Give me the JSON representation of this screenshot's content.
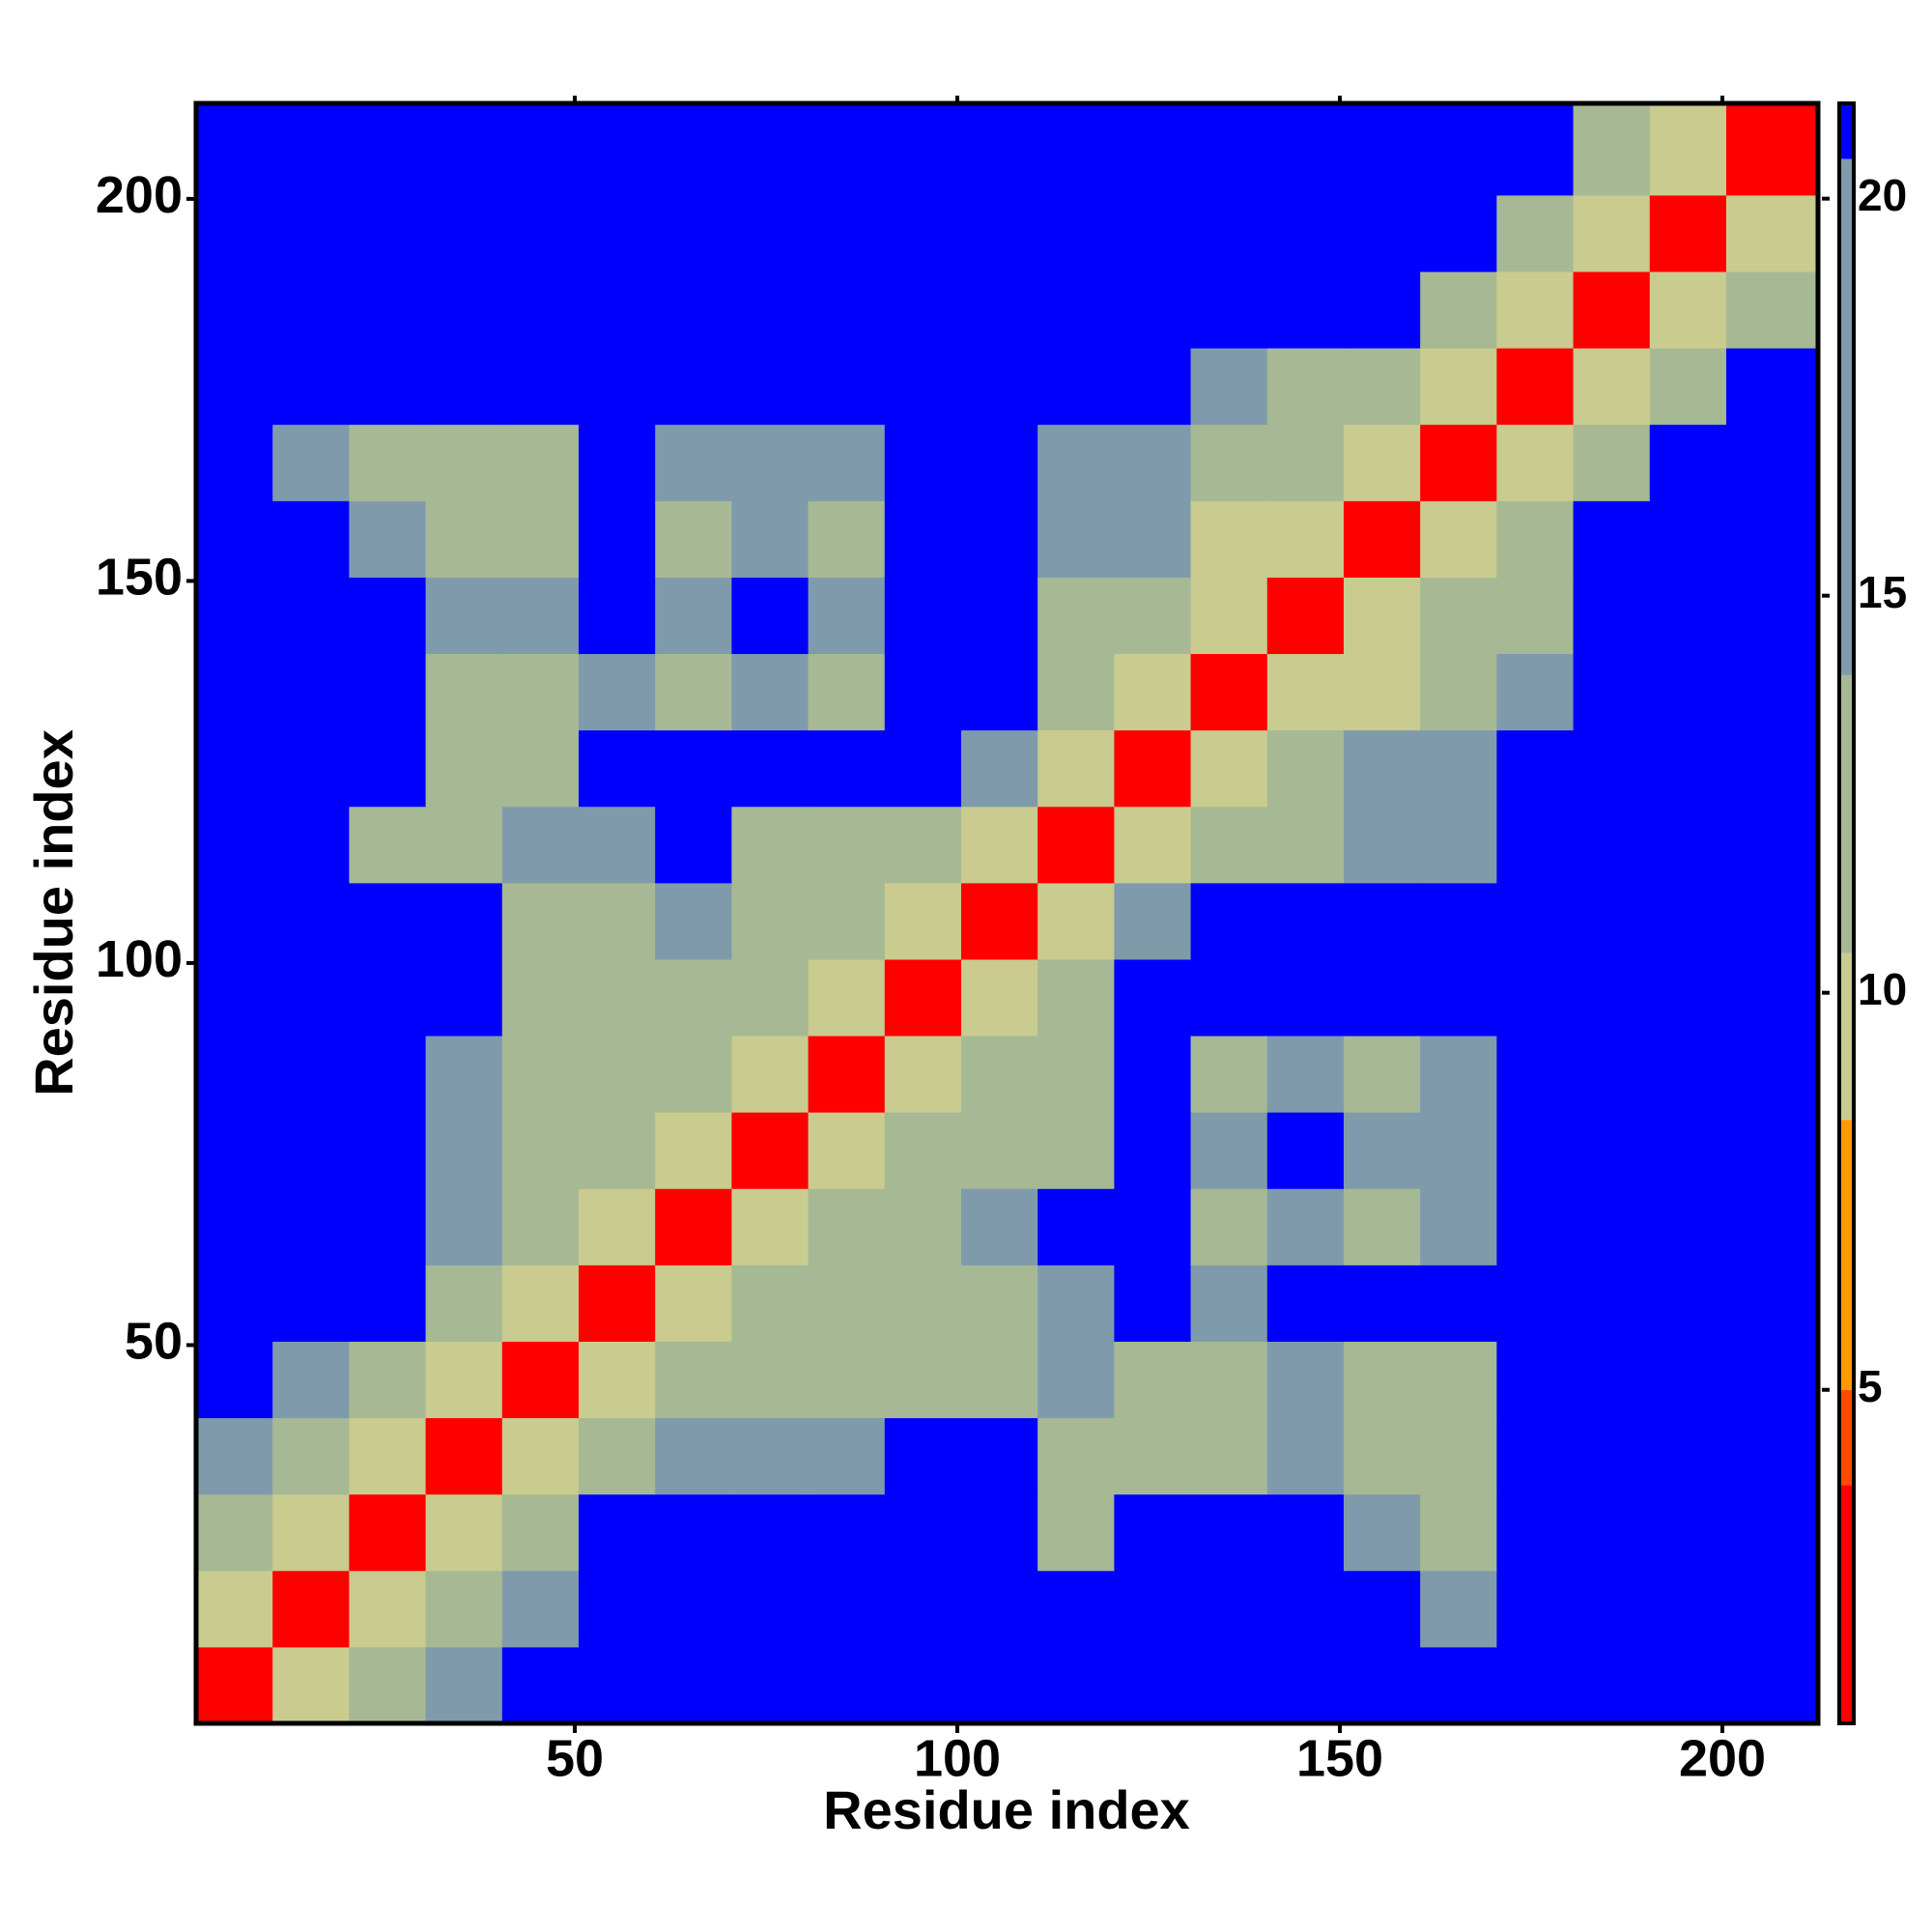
{
  "chart_data": {
    "type": "heatmap",
    "x_label": "Residue index",
    "y_label": "Residue index",
    "x_bins": [
      0.5,
      10.5,
      20.5,
      30.5,
      40.5,
      50.5,
      60.5,
      70.5,
      80.5,
      90.5,
      100.5,
      110.5,
      120.5,
      130.5,
      140.5,
      150.5,
      160.5,
      170.5,
      180.5,
      190.5,
      200.5,
      212.5
    ],
    "y_bins": [
      0.5,
      10.5,
      20.5,
      30.5,
      40.5,
      50.5,
      60.5,
      70.5,
      80.5,
      90.5,
      100.5,
      110.5,
      120.5,
      130.5,
      140.5,
      150.5,
      160.5,
      170.5,
      180.5,
      190.5,
      200.5,
      212.5
    ],
    "xlim": [
      0.5,
      212.5
    ],
    "ylim": [
      0.5,
      212.5
    ],
    "xticks": [
      50,
      100,
      150,
      200
    ],
    "yticks": [
      50,
      100,
      150,
      200
    ],
    "values": [
      [
        3,
        10,
        14,
        16,
        21,
        21,
        21,
        21,
        21,
        21,
        21,
        21,
        21,
        21,
        21,
        21,
        21,
        21,
        21,
        21,
        21
      ],
      [
        10,
        3,
        10,
        14,
        16,
        21,
        21,
        21,
        21,
        21,
        21,
        21,
        21,
        21,
        21,
        21,
        17,
        21,
        21,
        21,
        21
      ],
      [
        14,
        10,
        3,
        10,
        13,
        21,
        21,
        21,
        21,
        21,
        21,
        14,
        21,
        21,
        21,
        15,
        13,
        21,
        21,
        21,
        21
      ],
      [
        16,
        14,
        10,
        3,
        10,
        14,
        15,
        15,
        15,
        21,
        21,
        12,
        11,
        14,
        17,
        11,
        13,
        21,
        21,
        21,
        21
      ],
      [
        21,
        16,
        13,
        10,
        3,
        10,
        13,
        12,
        14,
        14,
        14,
        15,
        14,
        13,
        16,
        12,
        14,
        21,
        21,
        21,
        21
      ],
      [
        21,
        21,
        21,
        14,
        10,
        3,
        10,
        13,
        13,
        12,
        11,
        16,
        21,
        16,
        21,
        21,
        21,
        21,
        21,
        21,
        21
      ],
      [
        21,
        21,
        21,
        15,
        13,
        10,
        3,
        10,
        12,
        14,
        15,
        21,
        21,
        12,
        16,
        13,
        15,
        21,
        21,
        21,
        21
      ],
      [
        21,
        21,
        21,
        15,
        12,
        13,
        10,
        3,
        10,
        11,
        13,
        12,
        21,
        15,
        21,
        15,
        17,
        21,
        21,
        21,
        21
      ],
      [
        21,
        21,
        21,
        15,
        14,
        13,
        12,
        10,
        3,
        10,
        13,
        11,
        21,
        12,
        16,
        11,
        15,
        21,
        21,
        21,
        21
      ],
      [
        21,
        21,
        21,
        21,
        14,
        12,
        14,
        11,
        10,
        3,
        10,
        14,
        21,
        21,
        21,
        21,
        21,
        21,
        21,
        21,
        21
      ],
      [
        21,
        21,
        21,
        21,
        14,
        11,
        15,
        13,
        13,
        10,
        3,
        10,
        17,
        21,
        21,
        21,
        21,
        21,
        21,
        21,
        21
      ],
      [
        21,
        21,
        14,
        12,
        15,
        16,
        21,
        12,
        11,
        14,
        10,
        3,
        10,
        12,
        14,
        16,
        17,
        21,
        21,
        21,
        21
      ],
      [
        21,
        21,
        21,
        11,
        14,
        21,
        21,
        21,
        21,
        21,
        17,
        10,
        3,
        10,
        13,
        15,
        15,
        21,
        21,
        21,
        21
      ],
      [
        21,
        21,
        21,
        14,
        13,
        16,
        12,
        15,
        12,
        21,
        21,
        12,
        10,
        3,
        10,
        10,
        12,
        15,
        21,
        21,
        21
      ],
      [
        21,
        21,
        21,
        17,
        16,
        21,
        16,
        21,
        16,
        21,
        21,
        14,
        13,
        10,
        3,
        10,
        12,
        14,
        21,
        21,
        21
      ],
      [
        21,
        21,
        15,
        11,
        12,
        21,
        13,
        15,
        11,
        21,
        21,
        16,
        15,
        10,
        10,
        3,
        10,
        12,
        21,
        21,
        21
      ],
      [
        21,
        17,
        13,
        13,
        14,
        21,
        15,
        17,
        15,
        21,
        21,
        17,
        15,
        12,
        12,
        10,
        3,
        10,
        12,
        21,
        21
      ],
      [
        21,
        21,
        21,
        21,
        21,
        21,
        21,
        21,
        21,
        21,
        21,
        21,
        21,
        15,
        14,
        12,
        10,
        3,
        10,
        14,
        21
      ],
      [
        21,
        21,
        21,
        21,
        21,
        21,
        21,
        21,
        21,
        21,
        21,
        21,
        21,
        21,
        21,
        21,
        12,
        10,
        3,
        10,
        14
      ],
      [
        21,
        21,
        21,
        21,
        21,
        21,
        21,
        21,
        21,
        21,
        21,
        21,
        21,
        21,
        21,
        21,
        21,
        14,
        10,
        3,
        10
      ],
      [
        21,
        21,
        21,
        21,
        21,
        21,
        21,
        21,
        21,
        21,
        21,
        21,
        21,
        21,
        21,
        21,
        21,
        21,
        14,
        10,
        3
      ]
    ],
    "colorbar": {
      "lim": [
        0.8,
        21.2
      ],
      "ticks": [
        5,
        10,
        15,
        20
      ],
      "bands": [
        {
          "max": 3.8,
          "color": "#ff0000"
        },
        {
          "max": 5,
          "color": "#ff4a00"
        },
        {
          "max": 8.4,
          "color": "#ff9a00"
        },
        {
          "max": 10.5,
          "color": "#c9cb8f"
        },
        {
          "max": 14,
          "color": "#a6b994"
        },
        {
          "max": 20.5,
          "color": "#7f9bab"
        },
        {
          "max": 21.2,
          "color": "#0000ff"
        }
      ]
    }
  }
}
